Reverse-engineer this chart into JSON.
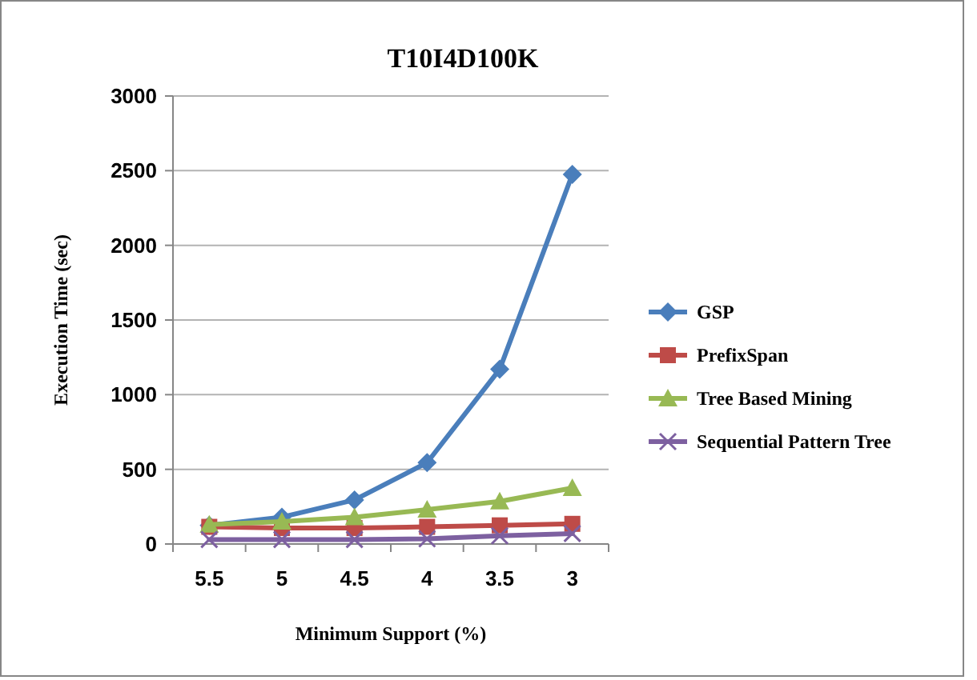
{
  "chart_data": {
    "type": "line",
    "title": "T10I4D100K",
    "xlabel": "Minimum Support (%)",
    "ylabel": "Execution Time (sec)",
    "categories": [
      "5.5",
      "5",
      "4.5",
      "4",
      "3.5",
      "3"
    ],
    "series": [
      {
        "name": "GSP",
        "color": "#4a7ebb",
        "marker": "diamond",
        "values": [
          125,
          180,
          295,
          545,
          1170,
          2475
        ]
      },
      {
        "name": "PrefixSpan",
        "color": "#be4b48",
        "marker": "square",
        "values": [
          115,
          107,
          107,
          115,
          125,
          135
        ]
      },
      {
        "name": "Tree Based Mining",
        "color": "#98b954",
        "marker": "triangle",
        "values": [
          130,
          150,
          180,
          230,
          285,
          375
        ]
      },
      {
        "name": "Sequential Pattern Tree",
        "color": "#7d60a0",
        "marker": "cross",
        "values": [
          30,
          30,
          30,
          35,
          55,
          70
        ]
      }
    ],
    "ylim": [
      0,
      3000
    ],
    "yticks": [
      0,
      500,
      1000,
      1500,
      2000,
      2500,
      3000
    ],
    "grid": "y",
    "legend": "right",
    "line_style": "solid"
  }
}
